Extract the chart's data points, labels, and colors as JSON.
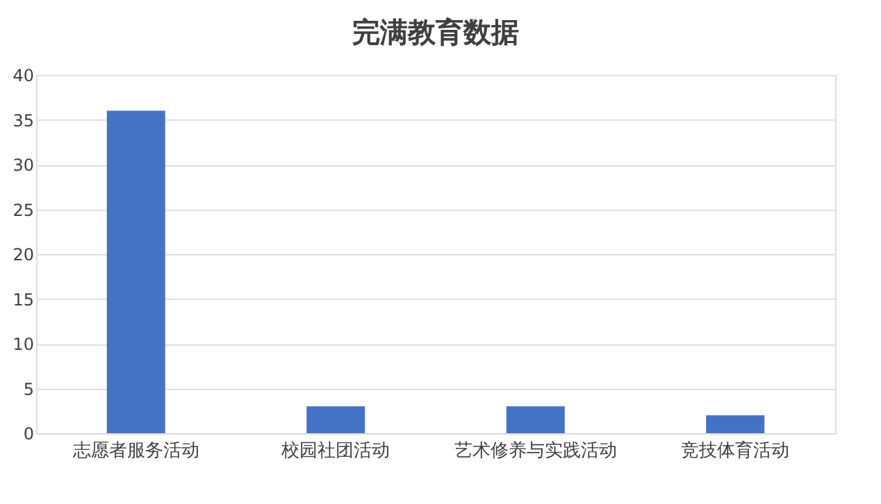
{
  "chart_data": {
    "type": "bar",
    "title": "完满教育数据",
    "categories": [
      "志愿者服务活动",
      "校园社团活动",
      "艺术修养与实践活动",
      "竞技体育活动"
    ],
    "values": [
      36,
      3,
      3,
      2
    ],
    "color": "#4472c4",
    "ylim": [
      0,
      40
    ],
    "yticks": [
      0,
      5,
      10,
      15,
      20,
      25,
      30,
      35,
      40
    ],
    "grid": "y"
  }
}
